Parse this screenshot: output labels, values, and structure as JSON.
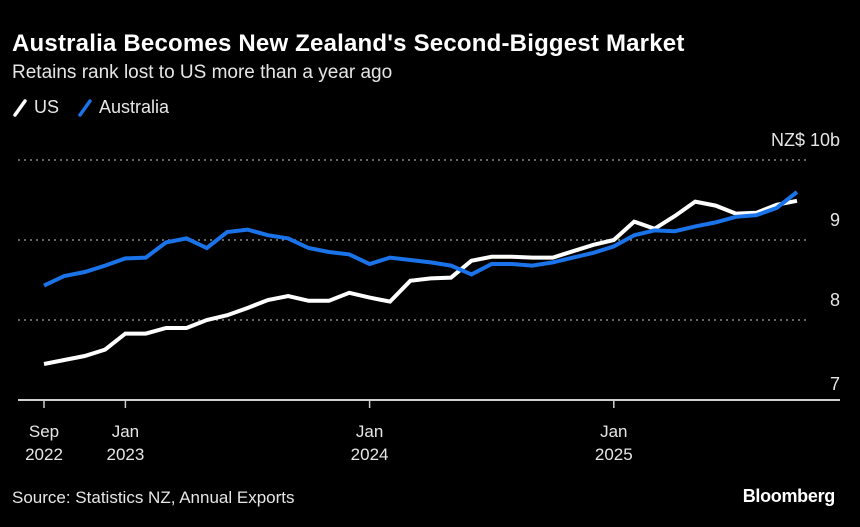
{
  "header": {
    "title": "Australia Becomes New Zealand's Second-Biggest Market",
    "subtitle": "Retains rank lost to US more than a year ago"
  },
  "footer": {
    "source": "Source: Statistics NZ, Annual Exports",
    "brand": "Bloomberg"
  },
  "colors": {
    "background": "#000000",
    "us": "#ffffff",
    "australia": "#1a73e8",
    "grid": "#8a8a8a",
    "axis": "#cfcfcf"
  },
  "chart_data": {
    "type": "line",
    "title": "Australia Becomes New Zealand's Second-Biggest Market",
    "subtitle": "Retains rank lost to US more than a year ago",
    "xlabel": "",
    "ylabel": "NZ$ 10b",
    "y_unit_label": "NZ$ 10b",
    "ylim": [
      7,
      10
    ],
    "yticks": [
      7,
      8,
      9,
      10
    ],
    "ytick_labels": [
      "7",
      "8",
      "9",
      "NZ$ 10b"
    ],
    "grid": true,
    "legend_position": "top-left",
    "x_start": "2022-09",
    "x_frequency": "monthly",
    "xticks": [
      {
        "month_index": 0,
        "line1": "Sep",
        "line2": "2022"
      },
      {
        "month_index": 4,
        "line1": "Jan",
        "line2": "2023"
      },
      {
        "month_index": 16,
        "line1": "Jan",
        "line2": "2024"
      },
      {
        "month_index": 28,
        "line1": "Jan",
        "line2": "2025"
      }
    ],
    "series": [
      {
        "name": "US",
        "color": "#ffffff",
        "values": [
          7.45,
          7.5,
          7.55,
          7.63,
          7.83,
          7.83,
          7.9,
          7.9,
          8.0,
          8.06,
          8.15,
          8.25,
          8.3,
          8.24,
          8.24,
          8.34,
          8.28,
          8.23,
          8.49,
          8.52,
          8.53,
          8.74,
          8.79,
          8.79,
          8.78,
          8.78,
          8.86,
          8.94,
          9.0,
          9.23,
          9.14,
          9.3,
          9.48,
          9.43,
          9.33,
          9.34,
          9.44,
          9.49
        ]
      },
      {
        "name": "Australia",
        "color": "#1a73e8",
        "values": [
          8.43,
          8.55,
          8.6,
          8.68,
          8.77,
          8.78,
          8.97,
          9.02,
          8.9,
          9.1,
          9.13,
          9.06,
          9.02,
          8.9,
          8.85,
          8.82,
          8.7,
          8.78,
          8.75,
          8.72,
          8.68,
          8.57,
          8.7,
          8.7,
          8.68,
          8.72,
          8.78,
          8.84,
          8.92,
          9.06,
          9.12,
          9.11,
          9.17,
          9.22,
          9.29,
          9.31,
          9.4,
          9.6
        ]
      }
    ]
  }
}
